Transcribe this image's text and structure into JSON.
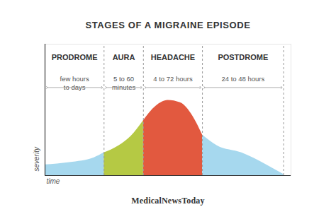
{
  "chart_data": {
    "type": "area",
    "title": "STAGES OF A MIGRAINE EPISODE",
    "x_label": "time",
    "y_label": "severity",
    "x": [
      0,
      10,
      20,
      24,
      30,
      35,
      40,
      45,
      50,
      55,
      60,
      64,
      70,
      80,
      90,
      97
    ],
    "values": [
      9,
      11,
      15,
      19,
      25,
      33,
      46,
      58,
      63,
      61,
      50,
      34,
      25,
      19,
      9,
      1
    ],
    "phases": [
      {
        "name": "PRODROME",
        "duration": "few hours\nto days",
        "start": 0,
        "end": 24,
        "color": "#a6d8ee"
      },
      {
        "name": "AURA",
        "duration": "5 to 60\nminutes",
        "start": 24,
        "end": 40,
        "color": "#b5c944"
      },
      {
        "name": "HEADACHE",
        "duration": "4 to 72 hours",
        "start": 40,
        "end": 64,
        "color": "#e2593f"
      },
      {
        "name": "POSTDROME",
        "duration": "24 to 48 hours",
        "start": 64,
        "end": 97,
        "color": "#a6d8ee"
      }
    ],
    "xlim": [
      0,
      100
    ],
    "ylim": [
      0,
      110
    ],
    "tick_labels": false,
    "source": "MedicalNewsToday"
  }
}
